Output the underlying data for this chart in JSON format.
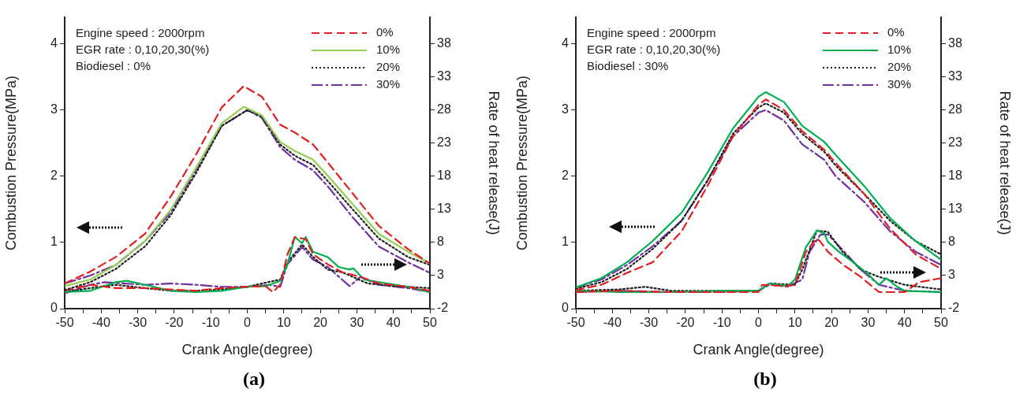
{
  "chart_data": [
    {
      "type": "line",
      "title": "(a)",
      "xlabel": "Crank Angle(degree)",
      "ylabel": "Combustion Pressure(MPa)",
      "y2label": "Rate of heat release(J)",
      "legend": "top right",
      "xlim": [
        -50,
        50
      ],
      "xticks": [
        -50,
        {
          "value": -45,
          "label": null
        },
        -40,
        {
          "value": -35,
          "label": null
        },
        -30,
        {
          "value": -25,
          "label": null
        },
        -20,
        {
          "value": -15,
          "label": null
        },
        -10,
        {
          "value": -5,
          "label": null
        },
        0,
        {
          "value": 5,
          "label": null
        },
        10,
        {
          "value": 15,
          "label": null
        },
        20,
        {
          "value": 25,
          "label": null
        },
        30,
        {
          "value": 35,
          "label": null
        },
        40,
        {
          "value": 45,
          "label": null
        },
        50
      ],
      "ylim": [
        0,
        4.4
      ],
      "yticks": [
        0,
        1,
        2,
        3,
        4
      ],
      "y2lim": [
        -2,
        42
      ],
      "y2ticks": [
        -2,
        3,
        8,
        13,
        18,
        23,
        28,
        33,
        38
      ],
      "annotations": [
        "Engine speed : 2000rpm",
        "EGR rate : 0,10,20,30(%)",
        "Biodiesel : 0%"
      ],
      "series": [
        {
          "name": "0%",
          "color": "#e02020",
          "line_style": "dashed",
          "axis": "y",
          "x": [
            -50,
            -43,
            -36,
            -28,
            -21,
            -14,
            -7,
            -1,
            4,
            9,
            13,
            18,
            22,
            29,
            36,
            44,
            50
          ],
          "values": [
            0.38,
            0.56,
            0.78,
            1.13,
            1.69,
            2.33,
            3.04,
            3.36,
            3.2,
            2.78,
            2.66,
            2.48,
            2.21,
            1.73,
            1.25,
            0.9,
            0.68
          ]
        },
        {
          "name": "10%",
          "color": "#92d050",
          "line_style": "solid",
          "axis": "y",
          "x": [
            -50,
            -43,
            -36,
            -28,
            -21,
            -14,
            -7,
            -1,
            4,
            9,
            13,
            18,
            22,
            29,
            36,
            44,
            50
          ],
          "values": [
            0.34,
            0.44,
            0.66,
            1.02,
            1.49,
            2.13,
            2.8,
            3.05,
            2.92,
            2.52,
            2.38,
            2.25,
            2.01,
            1.57,
            1.13,
            0.86,
            0.68
          ]
        },
        {
          "name": "20%",
          "color": "#202020",
          "line_style": "dotted",
          "axis": "y",
          "x": [
            -50,
            -43,
            -36,
            -28,
            -21,
            -14,
            -7,
            0,
            4,
            9,
            13,
            18,
            22,
            29,
            36,
            44,
            50
          ],
          "values": [
            0.28,
            0.4,
            0.6,
            0.94,
            1.41,
            2.05,
            2.76,
            3.0,
            2.9,
            2.48,
            2.31,
            2.17,
            1.93,
            1.49,
            1.06,
            0.78,
            0.66
          ]
        },
        {
          "name": "30%",
          "color": "#7030a0",
          "line_style": "dashdot",
          "axis": "y",
          "x": [
            -50,
            -43,
            -36,
            -28,
            -21,
            -14,
            -7,
            0,
            4,
            9,
            13,
            18,
            22,
            29,
            36,
            44,
            50
          ],
          "values": [
            0.38,
            0.5,
            0.66,
            1.02,
            1.45,
            2.09,
            2.76,
            3.0,
            2.88,
            2.44,
            2.25,
            2.09,
            1.85,
            1.37,
            0.94,
            0.7,
            0.54
          ]
        },
        {
          "color": "#e02020",
          "line_style": "dashed",
          "axis": "y2",
          "x": [
            -50,
            -43,
            -36,
            -28,
            -21,
            -14,
            -7,
            0,
            5,
            7,
            9,
            11,
            13,
            16,
            18,
            22,
            26,
            31,
            36,
            44,
            50
          ],
          "values": [
            0.7,
            1.6,
            1.1,
            1.1,
            0.9,
            0.7,
            1.1,
            1.3,
            1.4,
            0.5,
            1.6,
            6.2,
            8.8,
            8.5,
            6.2,
            4.7,
            3.5,
            2.8,
            1.8,
            1.3,
            0.7
          ]
        },
        {
          "color": "#00b050",
          "line_style": "solid",
          "axis": "y2",
          "x": [
            -50,
            -43,
            -36,
            -33,
            -28,
            -21,
            -14,
            -7,
            0,
            5,
            9,
            11,
            13,
            15,
            16,
            18,
            22,
            25,
            28,
            29,
            32,
            36,
            44,
            50
          ],
          "values": [
            0.5,
            0.7,
            2.0,
            2.2,
            1.6,
            0.7,
            0.5,
            0.7,
            1.3,
            1.4,
            2.2,
            4.7,
            8.8,
            7.9,
            8.8,
            6.6,
            5.8,
            4.3,
            3.9,
            4.1,
            2.4,
            2.0,
            1.3,
            0.5
          ]
        },
        {
          "color": "#202020",
          "line_style": "dotted",
          "axis": "y2",
          "x": [
            -50,
            -43,
            -36,
            -28,
            -21,
            -14,
            -7,
            0,
            9,
            11,
            15,
            18,
            22,
            26,
            33,
            40,
            50
          ],
          "values": [
            0.5,
            1.1,
            1.6,
            1.1,
            0.7,
            0.7,
            0.9,
            1.3,
            2.4,
            5.0,
            7.7,
            5.8,
            3.9,
            3.5,
            1.8,
            1.4,
            1.1
          ]
        },
        {
          "color": "#7030a0",
          "line_style": "dashdot",
          "axis": "y2",
          "x": [
            -50,
            -43,
            -39,
            -28,
            -21,
            -14,
            -7,
            0,
            6,
            9,
            11,
            15,
            18,
            22,
            28,
            31,
            36,
            44,
            50
          ],
          "values": [
            0.3,
            1.6,
            2.0,
            1.6,
            1.8,
            1.6,
            1.3,
            1.3,
            1.6,
            1.3,
            4.7,
            7.3,
            5.4,
            4.3,
            1.4,
            2.8,
            1.6,
            1.1,
            0.5
          ]
        }
      ]
    },
    {
      "type": "line",
      "title": "(b)",
      "xlabel": "Crank Angle(degree)",
      "ylabel": "Combustion Pressure(MPa)",
      "y2label": "Rate of heat release(J)",
      "legend": "top right",
      "xlim": [
        -50,
        50
      ],
      "xticks": [
        -50,
        {
          "value": -45,
          "label": null
        },
        -40,
        {
          "value": -35,
          "label": null
        },
        -30,
        {
          "value": -25,
          "label": null
        },
        -20,
        {
          "value": -15,
          "label": null
        },
        -10,
        {
          "value": -5,
          "label": null
        },
        0,
        {
          "value": 5,
          "label": null
        },
        10,
        {
          "value": 15,
          "label": null
        },
        20,
        {
          "value": 25,
          "label": null
        },
        30,
        {
          "value": 35,
          "label": null
        },
        40,
        {
          "value": 45,
          "label": null
        },
        50
      ],
      "ylim": [
        0,
        4.4
      ],
      "yticks": [
        0,
        1,
        2,
        3,
        4
      ],
      "y2lim": [
        -2,
        42
      ],
      "y2ticks": [
        -2,
        3,
        8,
        13,
        18,
        23,
        28,
        33,
        38
      ],
      "annotations": [
        "Engine speed : 2000rpm",
        "EGR rate : 0,10,20,30(%)",
        "Biodiesel : 30%"
      ],
      "series": [
        {
          "name": "0%",
          "color": "#e02020",
          "line_style": "dashed",
          "axis": "y",
          "x": [
            -50,
            -43,
            -36,
            -29,
            -21,
            -14,
            -7,
            0,
            2,
            7,
            12,
            18,
            21,
            29,
            36,
            43,
            50
          ],
          "values": [
            0.28,
            0.36,
            0.54,
            0.7,
            1.17,
            1.85,
            2.6,
            3.08,
            3.16,
            3.0,
            2.68,
            2.4,
            2.21,
            1.73,
            1.21,
            0.82,
            0.6
          ]
        },
        {
          "name": "10%",
          "color": "#00b050",
          "line_style": "solid",
          "axis": "y",
          "x": [
            -50,
            -43,
            -36,
            -29,
            -21,
            -14,
            -7,
            0,
            2,
            7,
            12,
            18,
            21,
            29,
            36,
            43,
            50
          ],
          "values": [
            0.32,
            0.46,
            0.7,
            1.02,
            1.45,
            2.05,
            2.72,
            3.2,
            3.27,
            3.12,
            2.76,
            2.52,
            2.33,
            1.85,
            1.37,
            1.02,
            0.74
          ]
        },
        {
          "name": "20%",
          "color": "#202020",
          "line_style": "dotted",
          "axis": "y",
          "x": [
            -50,
            -43,
            -36,
            -29,
            -21,
            -14,
            -7,
            0,
            2,
            7,
            12,
            18,
            21,
            29,
            36,
            43,
            50
          ],
          "values": [
            0.3,
            0.4,
            0.6,
            0.9,
            1.33,
            1.93,
            2.64,
            3.04,
            3.1,
            2.96,
            2.64,
            2.37,
            2.17,
            1.73,
            1.33,
            1.02,
            0.82
          ]
        },
        {
          "name": "30%",
          "color": "#7030a0",
          "line_style": "dashdot",
          "axis": "y",
          "x": [
            -50,
            -43,
            -36,
            -29,
            -21,
            -14,
            -7,
            0,
            2,
            7,
            12,
            18,
            21,
            29,
            36,
            43,
            50
          ],
          "values": [
            0.32,
            0.44,
            0.66,
            0.94,
            1.33,
            1.93,
            2.6,
            2.96,
            3.0,
            2.84,
            2.48,
            2.25,
            2.01,
            1.61,
            1.17,
            0.86,
            0.66
          ]
        },
        {
          "color": "#e02020",
          "line_style": "dashed",
          "axis": "y2",
          "x": [
            -50,
            -38,
            -24,
            -10,
            0,
            1,
            8,
            10,
            13,
            16,
            17,
            19,
            23,
            28,
            33,
            37,
            40,
            44,
            50
          ],
          "values": [
            0.5,
            0.7,
            0.5,
            0.5,
            0.5,
            1.6,
            1.4,
            1.6,
            6.6,
            8.6,
            8.1,
            6.6,
            4.7,
            2.8,
            0.5,
            0.5,
            0.5,
            2.0,
            2.6
          ]
        },
        {
          "color": "#00b050",
          "line_style": "solid",
          "axis": "y2",
          "x": [
            -50,
            -38,
            -24,
            -10,
            0,
            3,
            8,
            10,
            13,
            16,
            18,
            19,
            22,
            26,
            30,
            33,
            35,
            38,
            40,
            50
          ],
          "values": [
            0.7,
            0.5,
            0.5,
            0.7,
            0.7,
            1.8,
            1.4,
            2.4,
            7.3,
            9.8,
            9.4,
            8.1,
            6.6,
            5.0,
            3.2,
            1.6,
            2.6,
            1.3,
            0.7,
            0.5
          ]
        },
        {
          "color": "#202020",
          "line_style": "dotted",
          "axis": "y2",
          "x": [
            -50,
            -38,
            -31,
            -24,
            -10,
            0,
            3,
            10,
            12,
            16,
            19,
            23,
            28,
            33,
            40,
            50
          ],
          "values": [
            0.7,
            0.9,
            1.3,
            0.7,
            0.7,
            0.7,
            1.8,
            1.6,
            3.9,
            9.8,
            9.6,
            6.6,
            3.9,
            2.8,
            1.6,
            0.9
          ]
        },
        {
          "color": "#7030a0",
          "line_style": "dashdot",
          "axis": "y2",
          "x": [
            -50,
            -38,
            -24,
            -10,
            0,
            3,
            8,
            12,
            14,
            17,
            19,
            23,
            28,
            33,
            40,
            50
          ],
          "values": [
            0.5,
            0.7,
            0.5,
            0.5,
            0.7,
            1.6,
            1.3,
            2.4,
            6.6,
            9.2,
            9.2,
            6.9,
            3.9,
            1.6,
            0.7,
            0.5
          ]
        }
      ]
    }
  ]
}
